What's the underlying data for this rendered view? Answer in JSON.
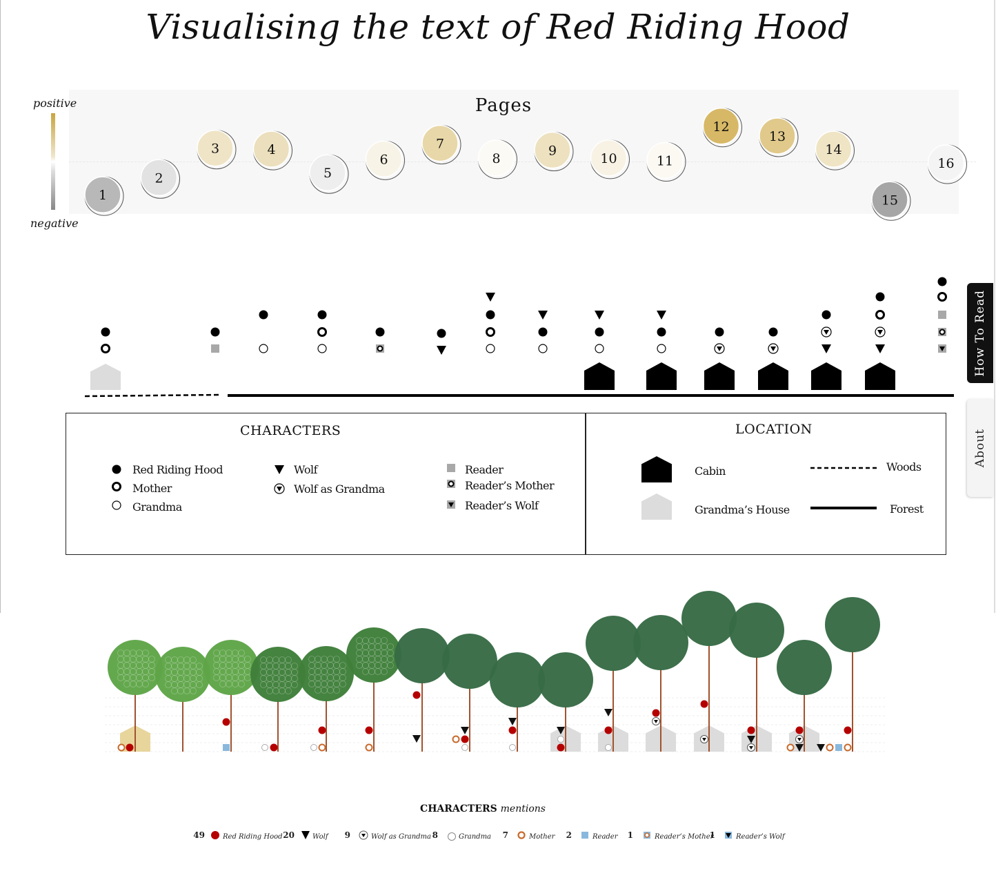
{
  "title": "Visualising the text of Red Riding Hood",
  "sentiment_scale": {
    "top_label": "positive",
    "bottom_label": "negative"
  },
  "side_tabs": {
    "how_to_read": "How To Read",
    "about": "About"
  },
  "chart_data": [
    {
      "type": "scatter",
      "title": "Pages",
      "description_scale": "sentiment from negative to positive",
      "pages": [
        {
          "label": "1",
          "sentiment": -0.65,
          "fill": "#b8b8b8"
        },
        {
          "label": "2",
          "sentiment": -0.3,
          "fill": "#e2e2e2"
        },
        {
          "label": "3",
          "sentiment": 0.3,
          "fill": "#efe4c6"
        },
        {
          "label": "4",
          "sentiment": 0.28,
          "fill": "#ebdfbd"
        },
        {
          "label": "5",
          "sentiment": -0.2,
          "fill": "#eeeeee"
        },
        {
          "label": "6",
          "sentiment": 0.08,
          "fill": "#f7f3e7"
        },
        {
          "label": "7",
          "sentiment": 0.4,
          "fill": "#e8d7a8"
        },
        {
          "label": "8",
          "sentiment": 0.1,
          "fill": "#fcfaf4"
        },
        {
          "label": "9",
          "sentiment": 0.26,
          "fill": "#ede1c0"
        },
        {
          "label": "10",
          "sentiment": 0.1,
          "fill": "#f7f2e4"
        },
        {
          "label": "11",
          "sentiment": 0.05,
          "fill": "#fbf9f2"
        },
        {
          "label": "12",
          "sentiment": 0.75,
          "fill": "#d7b866"
        },
        {
          "label": "13",
          "sentiment": 0.55,
          "fill": "#e0c98a"
        },
        {
          "label": "14",
          "sentiment": 0.28,
          "fill": "#efe4c4"
        },
        {
          "label": "15",
          "sentiment": -0.75,
          "fill": "#a6a6a6"
        },
        {
          "label": "16",
          "sentiment": 0.0,
          "fill": "#f4f4f4"
        }
      ]
    },
    {
      "type": "table",
      "title": "Characters and location per page",
      "pages": [
        {
          "page": 1,
          "characters": [
            "Red Riding Hood",
            "Mother"
          ],
          "location": "Grandma's House",
          "path": "Woods"
        },
        {
          "page": 2,
          "characters": [],
          "location": "",
          "path": "Woods"
        },
        {
          "page": 3,
          "characters": [
            "Red Riding Hood",
            "Reader"
          ],
          "location": "",
          "path": "Forest"
        },
        {
          "page": 4,
          "characters": [
            "Red Riding Hood",
            "Grandma"
          ],
          "location": "",
          "path": "Forest"
        },
        {
          "page": 5,
          "characters": [
            "Red Riding Hood",
            "Mother",
            "Grandma"
          ],
          "location": "",
          "path": "Forest"
        },
        {
          "page": 6,
          "characters": [
            "Red Riding Hood",
            "Reader's Mother"
          ],
          "location": "",
          "path": "Forest"
        },
        {
          "page": 7,
          "characters": [
            "Red Riding Hood",
            "Wolf"
          ],
          "location": "",
          "path": "Forest"
        },
        {
          "page": 8,
          "characters": [
            "Wolf",
            "Red Riding Hood",
            "Mother",
            "Grandma"
          ],
          "location": "",
          "path": "Forest"
        },
        {
          "page": 9,
          "characters": [
            "Wolf",
            "Red Riding Hood",
            "Grandma"
          ],
          "location": "",
          "path": "Forest"
        },
        {
          "page": 10,
          "characters": [
            "Wolf",
            "Red Riding Hood",
            "Grandma"
          ],
          "location": "Cabin",
          "path": "Forest"
        },
        {
          "page": 11,
          "characters": [
            "Wolf",
            "Red Riding Hood",
            "Grandma"
          ],
          "location": "Cabin",
          "path": "Forest"
        },
        {
          "page": 12,
          "characters": [
            "Red Riding Hood",
            "Wolf as Grandma"
          ],
          "location": "Cabin",
          "path": "Forest"
        },
        {
          "page": 13,
          "characters": [
            "Red Riding Hood",
            "Wolf as Grandma"
          ],
          "location": "Cabin",
          "path": "Forest"
        },
        {
          "page": 14,
          "characters": [
            "Red Riding Hood",
            "Wolf as Grandma",
            "Wolf"
          ],
          "location": "Cabin",
          "path": "Forest"
        },
        {
          "page": 15,
          "characters": [
            "Red Riding Hood",
            "Mother",
            "Wolf as Grandma",
            "Wolf"
          ],
          "location": "Cabin",
          "path": "Forest"
        },
        {
          "page": 16,
          "characters": [
            "Red Riding Hood",
            "Mother",
            "Reader",
            "Reader's Mother",
            "Reader's Wolf"
          ],
          "location": "",
          "path": "Forest"
        }
      ]
    },
    {
      "type": "bar",
      "title": "Characters mentions",
      "categories": [
        "Red Riding Hood",
        "Wolf",
        "Wolf as Grandma",
        "Grandma",
        "Mother",
        "Reader",
        "Reader's Mother",
        "Reader's Wolf"
      ],
      "values": [
        49,
        20,
        9,
        8,
        7,
        2,
        1,
        1
      ]
    }
  ],
  "legend": {
    "characters_title": "CHARACTERS",
    "characters": [
      {
        "label": "Red Riding Hood",
        "symbol": "filled-circle"
      },
      {
        "label": "Mother",
        "symbol": "ring-circle"
      },
      {
        "label": "Grandma",
        "symbol": "hollow-circle"
      },
      {
        "label": "Wolf",
        "symbol": "triangle"
      },
      {
        "label": "Wolf as Grandma",
        "symbol": "circle-triangle"
      },
      {
        "label": "Reader",
        "symbol": "grey-square"
      },
      {
        "label": "Reader’s Mother",
        "symbol": "square-ring"
      },
      {
        "label": "Reader’s Wolf",
        "symbol": "square-triangle"
      }
    ],
    "location_title": "LOCATION",
    "locations": [
      {
        "label": "Cabin",
        "symbol": "black-house"
      },
      {
        "label": "Grandma’s House",
        "symbol": "grey-house"
      },
      {
        "label": "Woods",
        "symbol": "dashed-line"
      },
      {
        "label": "Forest",
        "symbol": "solid-line"
      }
    ]
  },
  "mentions": {
    "title_bold": "CHARACTERS",
    "title_italic": "mentions",
    "items": [
      {
        "count": "49",
        "label": "Red Riding Hood"
      },
      {
        "count": "20",
        "label": "Wolf"
      },
      {
        "count": "9",
        "label": "Wolf as Grandma"
      },
      {
        "count": "8",
        "label": "Grandma"
      },
      {
        "count": "7",
        "label": "Mother"
      },
      {
        "count": "2",
        "label": "Reader"
      },
      {
        "count": "1",
        "label": "Reader’s Mother"
      },
      {
        "count": "1",
        "label": "Reader’s Wolf"
      }
    ]
  },
  "colors": {
    "light_tree": "#5fa548",
    "mid_tree": "#3f7f3a",
    "dark_tree": "#376b45",
    "trunk": "#a0522d",
    "red": "#b50000",
    "orange": "#c86a2c",
    "reader_blue": "#8ab8dc",
    "house_grey": "#dcdcdc",
    "house_tan": "#e8d59c"
  }
}
